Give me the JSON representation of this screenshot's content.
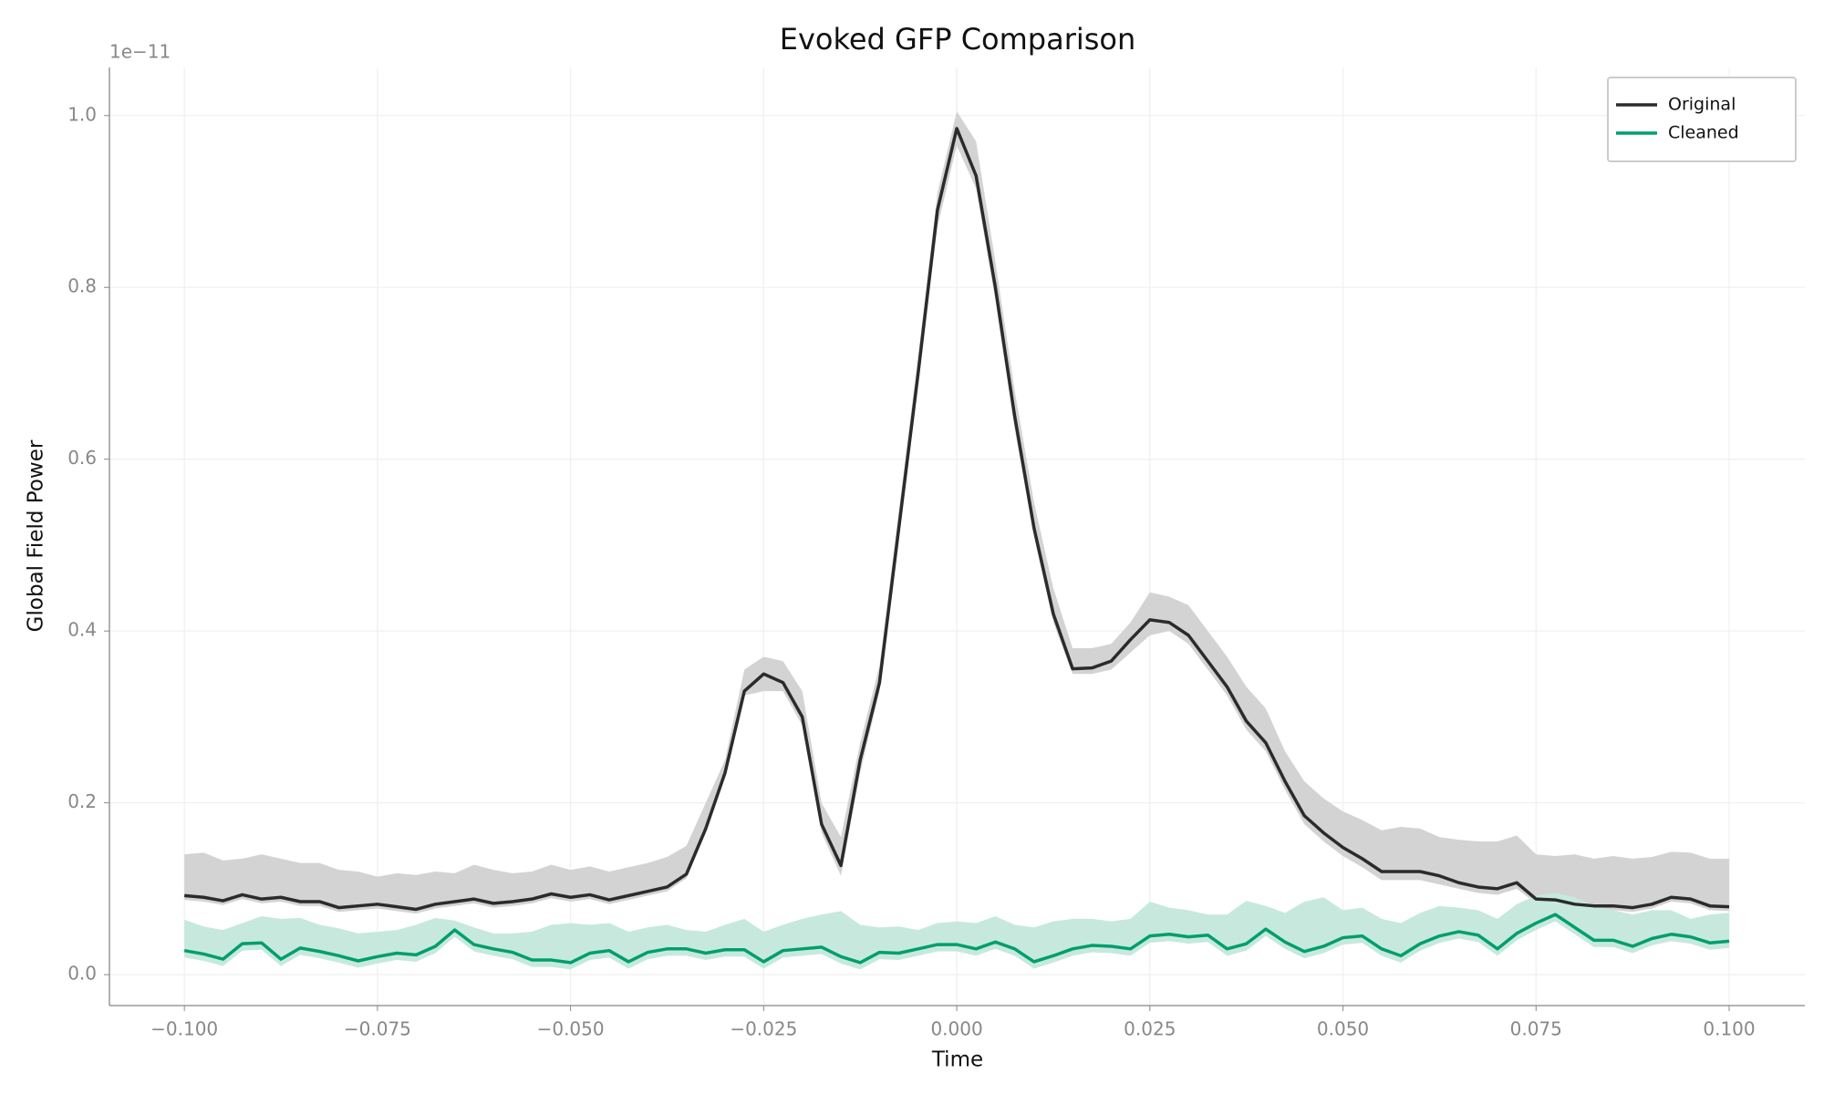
{
  "chart_data": {
    "type": "line",
    "title": "Evoked GFP Comparison",
    "xlabel": "Time",
    "ylabel": "Global Field Power",
    "y_offset_label": "1e−11",
    "x": [
      -0.1,
      -0.0975,
      -0.095,
      -0.0925,
      -0.09,
      -0.0875,
      -0.085,
      -0.0825,
      -0.08,
      -0.0775,
      -0.075,
      -0.0725,
      -0.07,
      -0.0675,
      -0.065,
      -0.0625,
      -0.06,
      -0.0575,
      -0.055,
      -0.0525,
      -0.05,
      -0.0475,
      -0.045,
      -0.0425,
      -0.04,
      -0.0375,
      -0.035,
      -0.0325,
      -0.03,
      -0.0275,
      -0.025,
      -0.0225,
      -0.02,
      -0.0175,
      -0.015,
      -0.0125,
      -0.01,
      -0.0075,
      -0.005,
      -0.0025,
      0,
      0.0025,
      0.005,
      0.0075,
      0.01,
      0.0125,
      0.015,
      0.0175,
      0.02,
      0.0225,
      0.025,
      0.0275,
      0.03,
      0.0325,
      0.035,
      0.0375,
      0.04,
      0.0425,
      0.045,
      0.0475,
      0.05,
      0.0525,
      0.055,
      0.0575,
      0.06,
      0.0625,
      0.065,
      0.0675,
      0.07,
      0.0725,
      0.075,
      0.0775,
      0.08,
      0.0825,
      0.085,
      0.0875,
      0.09,
      0.0925,
      0.095,
      0.0975,
      0.1
    ],
    "series": [
      {
        "name": "Original",
        "color": "#2b2b2b",
        "band_color": "#d3d3d3",
        "values": [
          0.092,
          0.09,
          0.086,
          0.093,
          0.088,
          0.09,
          0.085,
          0.085,
          0.078,
          0.08,
          0.082,
          0.079,
          0.076,
          0.082,
          0.085,
          0.088,
          0.083,
          0.085,
          0.088,
          0.094,
          0.09,
          0.093,
          0.087,
          0.092,
          0.097,
          0.102,
          0.117,
          0.17,
          0.235,
          0.33,
          0.35,
          0.34,
          0.3,
          0.175,
          0.127,
          0.25,
          0.34,
          0.52,
          0.7,
          0.89,
          0.985,
          0.93,
          0.8,
          0.65,
          0.52,
          0.42,
          0.356,
          0.357,
          0.365,
          0.39,
          0.413,
          0.41,
          0.395,
          0.365,
          0.335,
          0.295,
          0.27,
          0.225,
          0.185,
          0.165,
          0.148,
          0.135,
          0.12,
          0.12,
          0.12,
          0.115,
          0.107,
          0.102,
          0.1,
          0.107,
          0.088,
          0.087,
          0.082,
          0.08,
          0.08,
          0.078,
          0.082,
          0.09,
          0.088,
          0.08,
          0.079
        ],
        "lower": [
          0.087,
          0.085,
          0.081,
          0.088,
          0.083,
          0.085,
          0.08,
          0.08,
          0.073,
          0.075,
          0.077,
          0.074,
          0.071,
          0.077,
          0.08,
          0.083,
          0.078,
          0.08,
          0.083,
          0.089,
          0.085,
          0.088,
          0.082,
          0.087,
          0.092,
          0.097,
          0.112,
          0.165,
          0.23,
          0.325,
          0.33,
          0.33,
          0.29,
          0.165,
          0.115,
          0.235,
          0.33,
          0.51,
          0.69,
          0.87,
          0.965,
          0.915,
          0.785,
          0.635,
          0.51,
          0.41,
          0.35,
          0.35,
          0.355,
          0.375,
          0.395,
          0.4,
          0.385,
          0.355,
          0.325,
          0.285,
          0.26,
          0.215,
          0.175,
          0.155,
          0.138,
          0.125,
          0.11,
          0.11,
          0.11,
          0.105,
          0.1,
          0.095,
          0.093,
          0.1,
          0.083,
          0.082,
          0.077,
          0.075,
          0.075,
          0.073,
          0.077,
          0.085,
          0.083,
          0.075,
          0.074
        ],
        "upper": [
          0.14,
          0.142,
          0.133,
          0.135,
          0.14,
          0.135,
          0.13,
          0.13,
          0.122,
          0.12,
          0.114,
          0.118,
          0.116,
          0.12,
          0.118,
          0.128,
          0.122,
          0.118,
          0.12,
          0.128,
          0.122,
          0.126,
          0.12,
          0.125,
          0.13,
          0.137,
          0.15,
          0.2,
          0.25,
          0.355,
          0.37,
          0.365,
          0.33,
          0.2,
          0.16,
          0.27,
          0.36,
          0.54,
          0.72,
          0.91,
          1.005,
          0.97,
          0.83,
          0.68,
          0.55,
          0.45,
          0.38,
          0.38,
          0.385,
          0.41,
          0.445,
          0.44,
          0.43,
          0.4,
          0.37,
          0.335,
          0.31,
          0.26,
          0.225,
          0.205,
          0.19,
          0.18,
          0.168,
          0.172,
          0.17,
          0.16,
          0.157,
          0.155,
          0.155,
          0.162,
          0.14,
          0.138,
          0.14,
          0.135,
          0.138,
          0.135,
          0.137,
          0.143,
          0.142,
          0.135,
          0.135
        ]
      },
      {
        "name": "Cleaned",
        "color": "#009e6e",
        "band_color": "#c7e9dd",
        "values": [
          0.028,
          0.024,
          0.018,
          0.036,
          0.037,
          0.018,
          0.031,
          0.027,
          0.022,
          0.016,
          0.021,
          0.025,
          0.023,
          0.033,
          0.052,
          0.035,
          0.03,
          0.026,
          0.017,
          0.017,
          0.014,
          0.025,
          0.028,
          0.015,
          0.026,
          0.03,
          0.03,
          0.025,
          0.029,
          0.029,
          0.015,
          0.028,
          0.03,
          0.032,
          0.021,
          0.014,
          0.026,
          0.025,
          0.03,
          0.035,
          0.035,
          0.03,
          0.038,
          0.03,
          0.015,
          0.022,
          0.03,
          0.034,
          0.033,
          0.03,
          0.045,
          0.047,
          0.044,
          0.046,
          0.03,
          0.036,
          0.053,
          0.038,
          0.027,
          0.033,
          0.043,
          0.045,
          0.03,
          0.022,
          0.036,
          0.045,
          0.05,
          0.046,
          0.03,
          0.048,
          0.06,
          0.07,
          0.055,
          0.04,
          0.04,
          0.033,
          0.042,
          0.047,
          0.044,
          0.037,
          0.039
        ],
        "lower": [
          0.02,
          0.016,
          0.01,
          0.028,
          0.029,
          0.01,
          0.023,
          0.019,
          0.014,
          0.008,
          0.013,
          0.017,
          0.015,
          0.025,
          0.044,
          0.027,
          0.022,
          0.018,
          0.009,
          0.009,
          0.006,
          0.017,
          0.02,
          0.007,
          0.018,
          0.022,
          0.022,
          0.017,
          0.021,
          0.021,
          0.007,
          0.02,
          0.022,
          0.024,
          0.013,
          0.006,
          0.018,
          0.017,
          0.022,
          0.027,
          0.027,
          0.022,
          0.03,
          0.022,
          0.007,
          0.014,
          0.022,
          0.026,
          0.025,
          0.022,
          0.037,
          0.039,
          0.036,
          0.038,
          0.022,
          0.028,
          0.045,
          0.03,
          0.019,
          0.025,
          0.035,
          0.037,
          0.022,
          0.014,
          0.028,
          0.037,
          0.042,
          0.038,
          0.022,
          0.04,
          0.052,
          0.062,
          0.047,
          0.032,
          0.032,
          0.025,
          0.034,
          0.039,
          0.036,
          0.029,
          0.031
        ],
        "upper": [
          0.064,
          0.056,
          0.052,
          0.06,
          0.068,
          0.065,
          0.066,
          0.058,
          0.054,
          0.048,
          0.05,
          0.052,
          0.058,
          0.066,
          0.063,
          0.055,
          0.048,
          0.048,
          0.05,
          0.058,
          0.06,
          0.058,
          0.06,
          0.05,
          0.055,
          0.058,
          0.052,
          0.05,
          0.058,
          0.065,
          0.05,
          0.058,
          0.065,
          0.07,
          0.074,
          0.058,
          0.055,
          0.056,
          0.052,
          0.06,
          0.062,
          0.06,
          0.068,
          0.058,
          0.055,
          0.062,
          0.065,
          0.065,
          0.062,
          0.065,
          0.085,
          0.078,
          0.075,
          0.07,
          0.07,
          0.086,
          0.08,
          0.072,
          0.085,
          0.09,
          0.075,
          0.078,
          0.065,
          0.06,
          0.072,
          0.08,
          0.078,
          0.075,
          0.065,
          0.082,
          0.092,
          0.095,
          0.09,
          0.08,
          0.075,
          0.07,
          0.075,
          0.075,
          0.065,
          0.07,
          0.072
        ]
      }
    ],
    "xlim": [
      -0.1097,
      0.1098
    ],
    "ylim": [
      -0.036,
      1.056
    ],
    "xticks": [
      {
        "value": -0.1,
        "label": "−0.100"
      },
      {
        "value": -0.075,
        "label": "−0.075"
      },
      {
        "value": -0.05,
        "label": "−0.050"
      },
      {
        "value": -0.025,
        "label": "−0.025"
      },
      {
        "value": 0,
        "label": "0.000"
      },
      {
        "value": 0.025,
        "label": "0.025"
      },
      {
        "value": 0.05,
        "label": "0.050"
      },
      {
        "value": 0.075,
        "label": "0.075"
      },
      {
        "value": 0.1,
        "label": "0.100"
      }
    ],
    "yticks": [
      {
        "value": 0,
        "label": "0.0"
      },
      {
        "value": 0.2,
        "label": "0.2"
      },
      {
        "value": 0.4,
        "label": "0.4"
      },
      {
        "value": 0.6,
        "label": "0.6"
      },
      {
        "value": 0.8,
        "label": "0.8"
      },
      {
        "value": 1,
        "label": "1.0"
      }
    ],
    "grid": true,
    "legend": "upper right"
  }
}
